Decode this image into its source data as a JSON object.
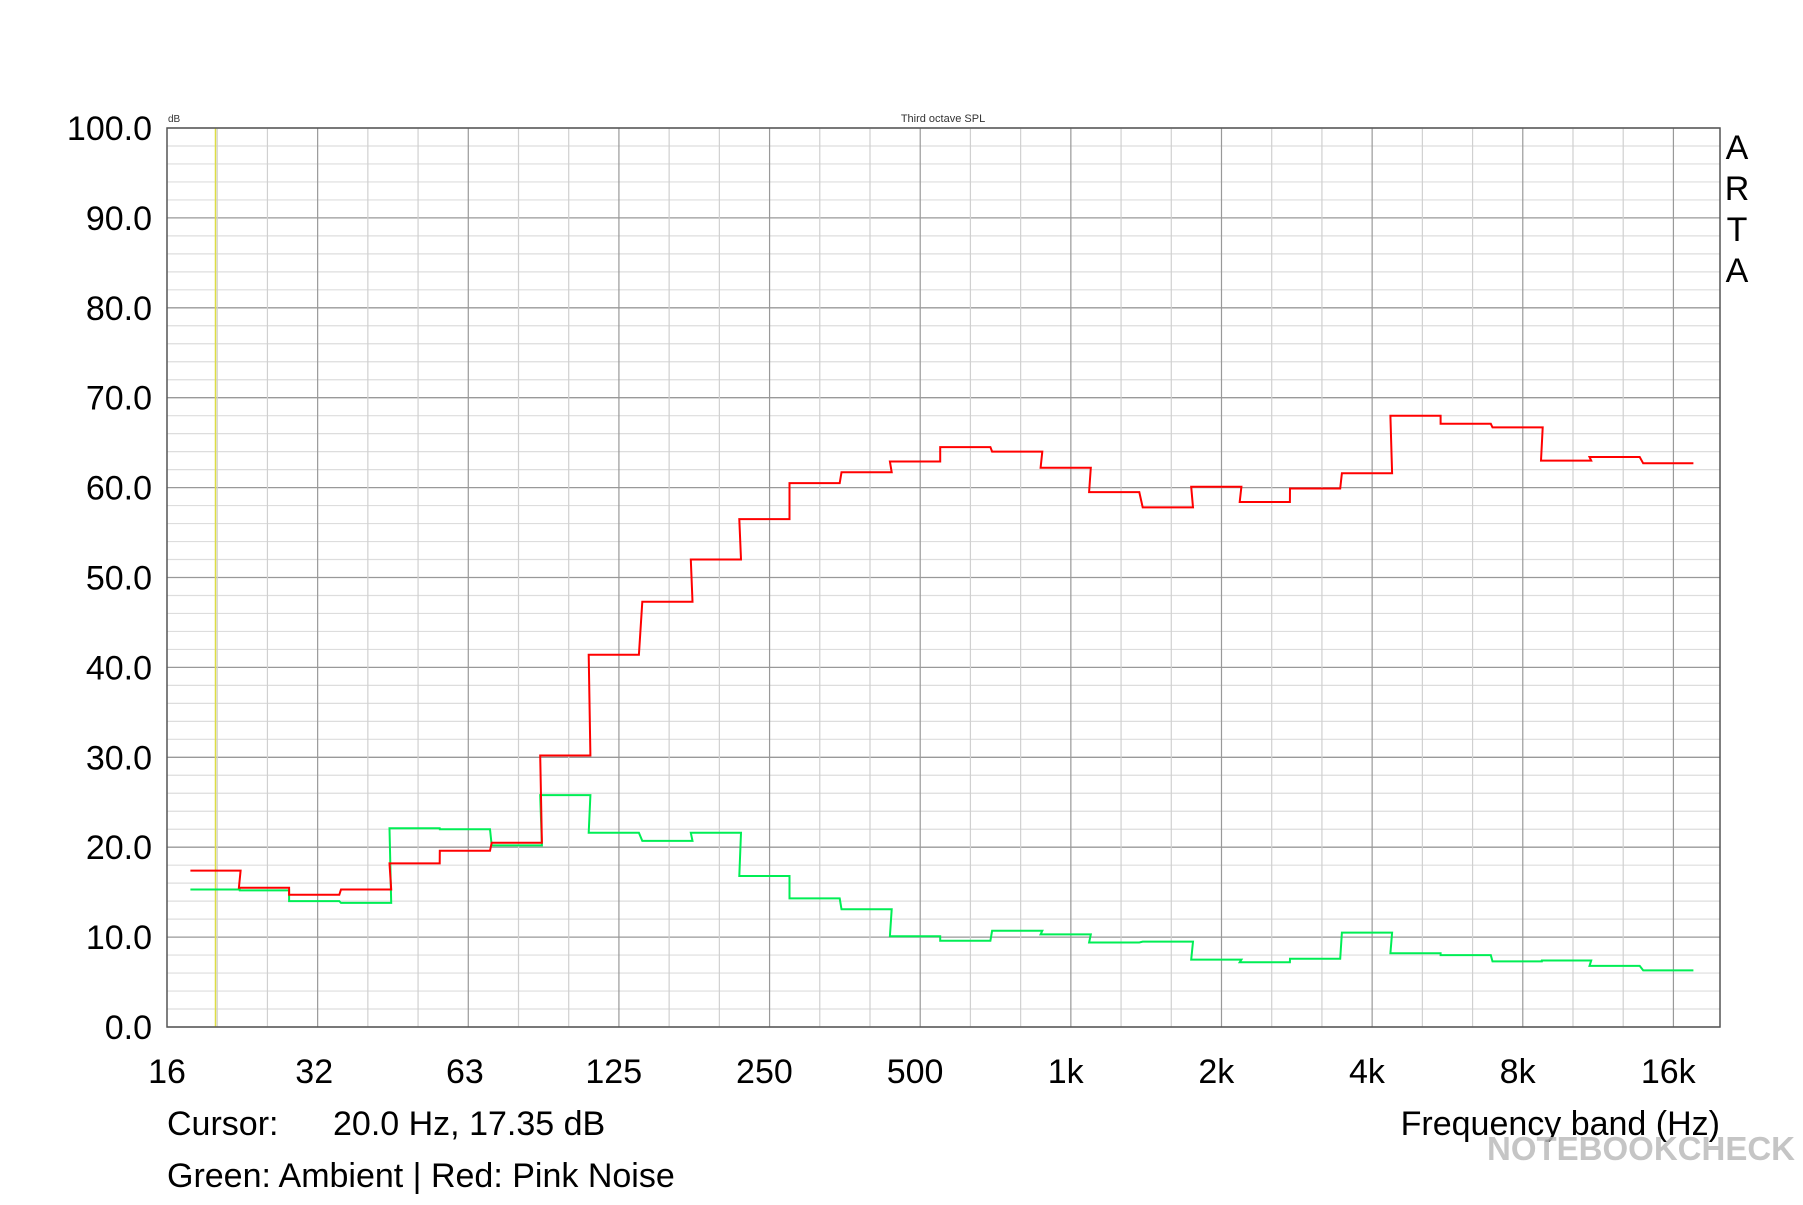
{
  "chart_data": {
    "type": "line",
    "step": true,
    "title": "Third octave SPL",
    "ylabel": "dB",
    "xlabel": "Frequency band (Hz)",
    "xscale": "log",
    "xlim": [
      16,
      20300
    ],
    "ylim": [
      0,
      100
    ],
    "grid": true,
    "xticks": [
      {
        "v": 16,
        "label": "16"
      },
      {
        "v": 31.5,
        "label": "32"
      },
      {
        "v": 63,
        "label": "63"
      },
      {
        "v": 125,
        "label": "125"
      },
      {
        "v": 250,
        "label": "250"
      },
      {
        "v": 500,
        "label": "500"
      },
      {
        "v": 1000,
        "label": "1k"
      },
      {
        "v": 2000,
        "label": "2k"
      },
      {
        "v": 4000,
        "label": "4k"
      },
      {
        "v": 8000,
        "label": "8k"
      },
      {
        "v": 16000,
        "label": "16k"
      }
    ],
    "yticks": [
      "0.0",
      "10.0",
      "20.0",
      "30.0",
      "40.0",
      "50.0",
      "60.0",
      "70.0",
      "80.0",
      "90.0",
      "100.0"
    ],
    "bands": [
      20,
      25,
      31.5,
      40,
      50,
      63,
      80,
      100,
      125,
      160,
      200,
      250,
      315,
      400,
      500,
      630,
      800,
      1000,
      1250,
      1600,
      2000,
      2500,
      3150,
      4000,
      5000,
      6300,
      8000,
      10000,
      12500,
      16000
    ],
    "series": [
      {
        "name": "Pink Noise",
        "color": "#ff0000",
        "values": [
          17.4,
          15.5,
          14.7,
          15.3,
          18.2,
          19.6,
          20.5,
          30.2,
          41.4,
          47.3,
          52.0,
          56.5,
          60.5,
          61.7,
          62.9,
          64.5,
          64.0,
          62.2,
          59.5,
          57.8,
          60.1,
          58.4,
          59.9,
          61.6,
          68.0,
          67.1,
          66.7,
          63.0,
          63.4,
          62.7
        ]
      },
      {
        "name": "Ambient",
        "color": "#00ee55",
        "values": [
          15.3,
          15.2,
          14.0,
          13.8,
          22.1,
          22.0,
          20.2,
          25.8,
          21.6,
          20.7,
          21.6,
          16.8,
          14.3,
          13.1,
          10.1,
          9.6,
          10.7,
          10.3,
          9.4,
          9.5,
          7.5,
          7.2,
          7.6,
          10.5,
          8.2,
          8.0,
          7.3,
          7.4,
          6.8,
          6.3
        ]
      }
    ],
    "cursor": {
      "freq": 20,
      "color": "#dddd44"
    },
    "cursor_text": {
      "label": "Cursor:",
      "value": "20.0 Hz, 17.35 dB"
    },
    "legend_text": "Green: Ambient | Red: Pink Noise",
    "brand": "ARTA",
    "watermark": "NOTEBOOKCHECK"
  }
}
